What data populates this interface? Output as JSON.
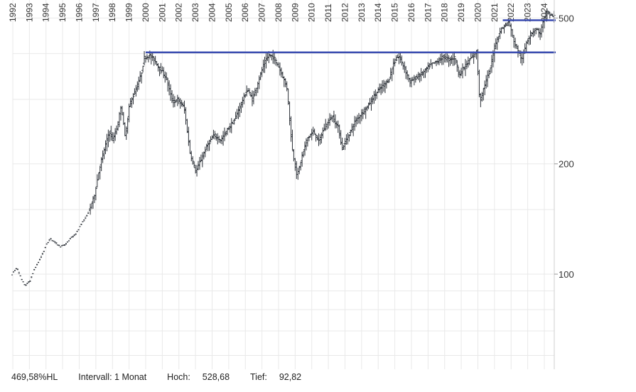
{
  "footer": {
    "performance": "469,58%HL",
    "interval_label": "Intervall:",
    "interval_value": "1 Monat",
    "high_label": "Hoch:",
    "high_value": "528,68",
    "low_label": "Tief:",
    "low_value": "92,82"
  },
  "chart_data": {
    "type": "ohlc",
    "scale": "log",
    "grid": true,
    "ylim": [
      55,
      560
    ],
    "yticks": [
      100,
      200,
      500
    ],
    "year_ticks": [
      "1992",
      "1993",
      "1994",
      "1995",
      "1996",
      "1997",
      "1998",
      "1999",
      "2000",
      "2001",
      "2002",
      "2003",
      "2004",
      "2005",
      "2006",
      "2007",
      "2008",
      "2009",
      "2010",
      "2011",
      "2012",
      "2013",
      "2014",
      "2015",
      "2016",
      "2017",
      "2018",
      "2019",
      "2020",
      "2021",
      "2022",
      "2023",
      "2024"
    ],
    "x_range": [
      1992.0,
      2024.6
    ],
    "colors": {
      "bars": "#2a2f36",
      "resistance": "#3a4cb0",
      "grid": "#e9e9e9"
    },
    "resistance_lines": [
      {
        "value": 403,
        "start": 2000.0,
        "end": 2024.6
      },
      {
        "value": 493,
        "start": 2021.5,
        "end": 2024.6
      }
    ],
    "path": [
      [
        1992.0,
        100
      ],
      [
        1992.3,
        104
      ],
      [
        1992.6,
        96
      ],
      [
        1992.8,
        93
      ],
      [
        1993.1,
        96
      ],
      [
        1993.3,
        102
      ],
      [
        1993.6,
        108
      ],
      [
        1993.9,
        115
      ],
      [
        1994.1,
        121
      ],
      [
        1994.3,
        125
      ],
      [
        1994.6,
        122
      ],
      [
        1994.9,
        119
      ],
      [
        1995.2,
        120
      ],
      [
        1995.5,
        125
      ],
      [
        1995.8,
        128
      ],
      [
        1996.1,
        135
      ],
      [
        1996.4,
        142
      ],
      [
        1996.7,
        150
      ],
      [
        1997.0,
        165
      ],
      [
        1997.3,
        195
      ],
      [
        1997.6,
        220
      ],
      [
        1997.9,
        246
      ],
      [
        1998.1,
        232
      ],
      [
        1998.4,
        255
      ],
      [
        1998.6,
        290
      ],
      [
        1998.85,
        235
      ],
      [
        1999.1,
        290
      ],
      [
        1999.5,
        320
      ],
      [
        1999.8,
        350
      ],
      [
        2000.0,
        390
      ],
      [
        2000.3,
        396
      ],
      [
        2000.6,
        385
      ],
      [
        2000.9,
        365
      ],
      [
        2001.3,
        345
      ],
      [
        2001.7,
        295
      ],
      [
        2002.0,
        300
      ],
      [
        2002.4,
        285
      ],
      [
        2002.75,
        215
      ],
      [
        2003.1,
        190
      ],
      [
        2003.4,
        205
      ],
      [
        2003.8,
        225
      ],
      [
        2004.2,
        240
      ],
      [
        2004.6,
        232
      ],
      [
        2005.0,
        248
      ],
      [
        2005.4,
        262
      ],
      [
        2005.8,
        290
      ],
      [
        2006.2,
        320
      ],
      [
        2006.5,
        300
      ],
      [
        2006.9,
        340
      ],
      [
        2007.2,
        375
      ],
      [
        2007.5,
        396
      ],
      [
        2007.8,
        390
      ],
      [
        2008.2,
        360
      ],
      [
        2008.6,
        320
      ],
      [
        2008.9,
        220
      ],
      [
        2009.2,
        185
      ],
      [
        2009.5,
        210
      ],
      [
        2009.8,
        235
      ],
      [
        2010.2,
        245
      ],
      [
        2010.5,
        230
      ],
      [
        2010.9,
        255
      ],
      [
        2011.3,
        270
      ],
      [
        2011.7,
        250
      ],
      [
        2011.9,
        220
      ],
      [
        2012.3,
        240
      ],
      [
        2012.7,
        262
      ],
      [
        2013.1,
        275
      ],
      [
        2013.5,
        290
      ],
      [
        2013.9,
        310
      ],
      [
        2014.3,
        325
      ],
      [
        2014.7,
        338
      ],
      [
        2015.0,
        375
      ],
      [
        2015.3,
        395
      ],
      [
        2015.6,
        370
      ],
      [
        2016.0,
        335
      ],
      [
        2016.4,
        345
      ],
      [
        2016.8,
        355
      ],
      [
        2017.2,
        372
      ],
      [
        2017.6,
        380
      ],
      [
        2018.0,
        392
      ],
      [
        2018.3,
        385
      ],
      [
        2018.7,
        390
      ],
      [
        2018.95,
        350
      ],
      [
        2019.3,
        370
      ],
      [
        2019.7,
        390
      ],
      [
        2020.0,
        405
      ],
      [
        2020.2,
        295
      ],
      [
        2020.5,
        330
      ],
      [
        2020.8,
        360
      ],
      [
        2021.1,
        420
      ],
      [
        2021.4,
        460
      ],
      [
        2021.7,
        478
      ],
      [
        2021.95,
        488
      ],
      [
        2022.2,
        440
      ],
      [
        2022.5,
        405
      ],
      [
        2022.75,
        385
      ],
      [
        2023.0,
        430
      ],
      [
        2023.3,
        455
      ],
      [
        2023.6,
        470
      ],
      [
        2023.8,
        450
      ],
      [
        2024.0,
        485
      ],
      [
        2024.2,
        520
      ],
      [
        2024.45,
        510
      ],
      [
        2024.6,
        505
      ]
    ]
  }
}
